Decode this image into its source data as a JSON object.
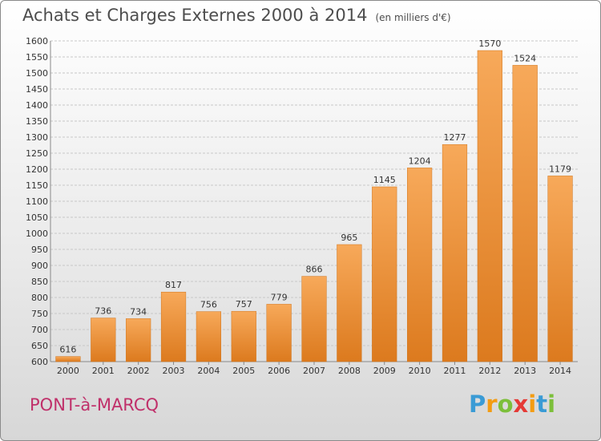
{
  "chart_data": {
    "type": "bar",
    "title": "Achats et Charges Externes 2000 à 2014",
    "subtitle": "(en milliers d'€)",
    "categories": [
      "2000",
      "2001",
      "2002",
      "2003",
      "2004",
      "2005",
      "2006",
      "2007",
      "2008",
      "2009",
      "2010",
      "2011",
      "2012",
      "2013",
      "2014"
    ],
    "values": [
      616,
      736,
      734,
      817,
      756,
      757,
      779,
      866,
      965,
      1145,
      1204,
      1277,
      1570,
      1524,
      1179
    ],
    "ylim": [
      600,
      1600
    ],
    "yticks": [
      600,
      650,
      700,
      750,
      800,
      850,
      900,
      950,
      1000,
      1050,
      1100,
      1150,
      1200,
      1250,
      1300,
      1350,
      1400,
      1450,
      1500,
      1550,
      1600
    ],
    "grid": true,
    "bar_color_top": "#f7a95a",
    "bar_color_bottom": "#dc7a1e"
  },
  "commune": "PONT-à-MARCQ",
  "logo": {
    "letters": [
      "P",
      "r",
      "o",
      "x",
      "i",
      "t",
      "i"
    ],
    "colors": [
      "#3a9bd5",
      "#f39c12",
      "#7cbf3a",
      "#e53935",
      "#f39c12",
      "#3a9bd5",
      "#7cbf3a"
    ]
  }
}
